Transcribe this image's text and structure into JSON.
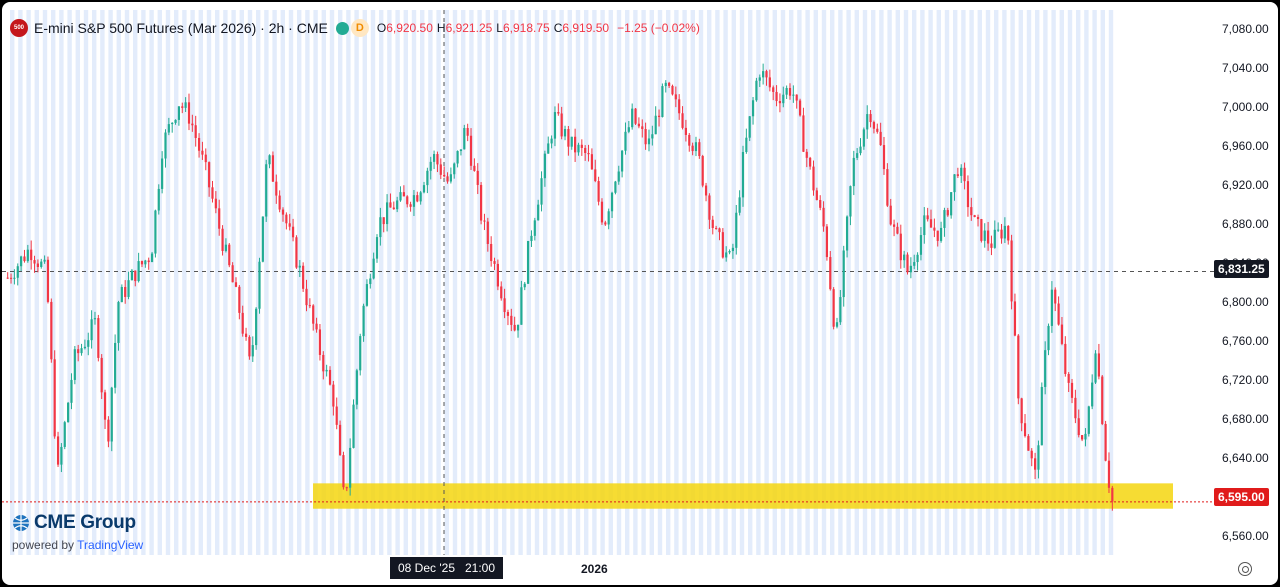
{
  "header": {
    "badge": "500",
    "title": "E-mini S&P 500 Futures (Mar 2026) · 2h · CME",
    "mode_badge": "D",
    "open_label": "O",
    "open": "6,920.50",
    "high_label": "H",
    "high": "6,921.25",
    "low_label": "L",
    "low": "6,918.75",
    "close_label": "C",
    "close": "6,919.50",
    "change": "−1.25 (−0.02%)"
  },
  "price_axis": {
    "ticks": [
      "7,080.00",
      "7,040.00",
      "7,000.00",
      "6,960.00",
      "6,920.00",
      "6,880.00",
      "6,840.00",
      "6,800.00",
      "6,760.00",
      "6,720.00",
      "6,680.00",
      "6,640.00",
      "6,600.00",
      "6,560.00"
    ],
    "crosshair_price": "6,831.25",
    "last_price": "6,595.00"
  },
  "time_axis": {
    "crosshair_time": "08 Dec '25   21:00",
    "year_label": "2026"
  },
  "branding": {
    "logo": "CME Group",
    "powered_by": "powered by",
    "tradingview": "TradingView"
  },
  "colors": {
    "up": "#22ab94",
    "down": "#f23645",
    "highlight": "#f5d60f",
    "session_band": "#e3ecfb"
  },
  "chart_data": {
    "type": "candlestick",
    "ylim": [
      6540,
      7100
    ],
    "support_zone": [
      6588,
      6614
    ],
    "path": [
      [
        0,
        6825
      ],
      [
        0.02,
        6855
      ],
      [
        0.035,
        6830
      ],
      [
        0.045,
        6620
      ],
      [
        0.06,
        6740
      ],
      [
        0.08,
        6780
      ],
      [
        0.09,
        6650
      ],
      [
        0.1,
        6800
      ],
      [
        0.115,
        6830
      ],
      [
        0.13,
        6850
      ],
      [
        0.14,
        6960
      ],
      [
        0.155,
        7005
      ],
      [
        0.165,
        6990
      ],
      [
        0.18,
        6930
      ],
      [
        0.195,
        6860
      ],
      [
        0.21,
        6790
      ],
      [
        0.22,
        6730
      ],
      [
        0.235,
        6950
      ],
      [
        0.25,
        6890
      ],
      [
        0.265,
        6830
      ],
      [
        0.28,
        6760
      ],
      [
        0.295,
        6700
      ],
      [
        0.305,
        6590
      ],
      [
        0.32,
        6780
      ],
      [
        0.335,
        6880
      ],
      [
        0.35,
        6900
      ],
      [
        0.37,
        6910
      ],
      [
        0.385,
        6950
      ],
      [
        0.4,
        6920
      ],
      [
        0.415,
        6980
      ],
      [
        0.43,
        6880
      ],
      [
        0.45,
        6800
      ],
      [
        0.46,
        6770
      ],
      [
        0.475,
        6880
      ],
      [
        0.495,
        6990
      ],
      [
        0.51,
        6960
      ],
      [
        0.525,
        6950
      ],
      [
        0.54,
        6880
      ],
      [
        0.55,
        6930
      ],
      [
        0.565,
        6990
      ],
      [
        0.58,
        6960
      ],
      [
        0.595,
        7020
      ],
      [
        0.61,
        6990
      ],
      [
        0.625,
        6950
      ],
      [
        0.64,
        6870
      ],
      [
        0.655,
        6840
      ],
      [
        0.665,
        6940
      ],
      [
        0.68,
        7040
      ],
      [
        0.695,
        7010
      ],
      [
        0.71,
        7020
      ],
      [
        0.725,
        6940
      ],
      [
        0.74,
        6870
      ],
      [
        0.75,
        6760
      ],
      [
        0.765,
        6940
      ],
      [
        0.78,
        7000
      ],
      [
        0.79,
        6960
      ],
      [
        0.8,
        6880
      ],
      [
        0.815,
        6830
      ],
      [
        0.83,
        6880
      ],
      [
        0.845,
        6870
      ],
      [
        0.86,
        6940
      ],
      [
        0.875,
        6880
      ],
      [
        0.89,
        6860
      ],
      [
        0.905,
        6880
      ],
      [
        0.915,
        6700
      ],
      [
        0.93,
        6620
      ],
      [
        0.945,
        6820
      ],
      [
        0.96,
        6710
      ],
      [
        0.975,
        6650
      ],
      [
        0.985,
        6760
      ],
      [
        0.995,
        6630
      ],
      [
        1.0,
        6595
      ]
    ],
    "horizontal_lines": [
      6831.25,
      6595.0
    ]
  }
}
